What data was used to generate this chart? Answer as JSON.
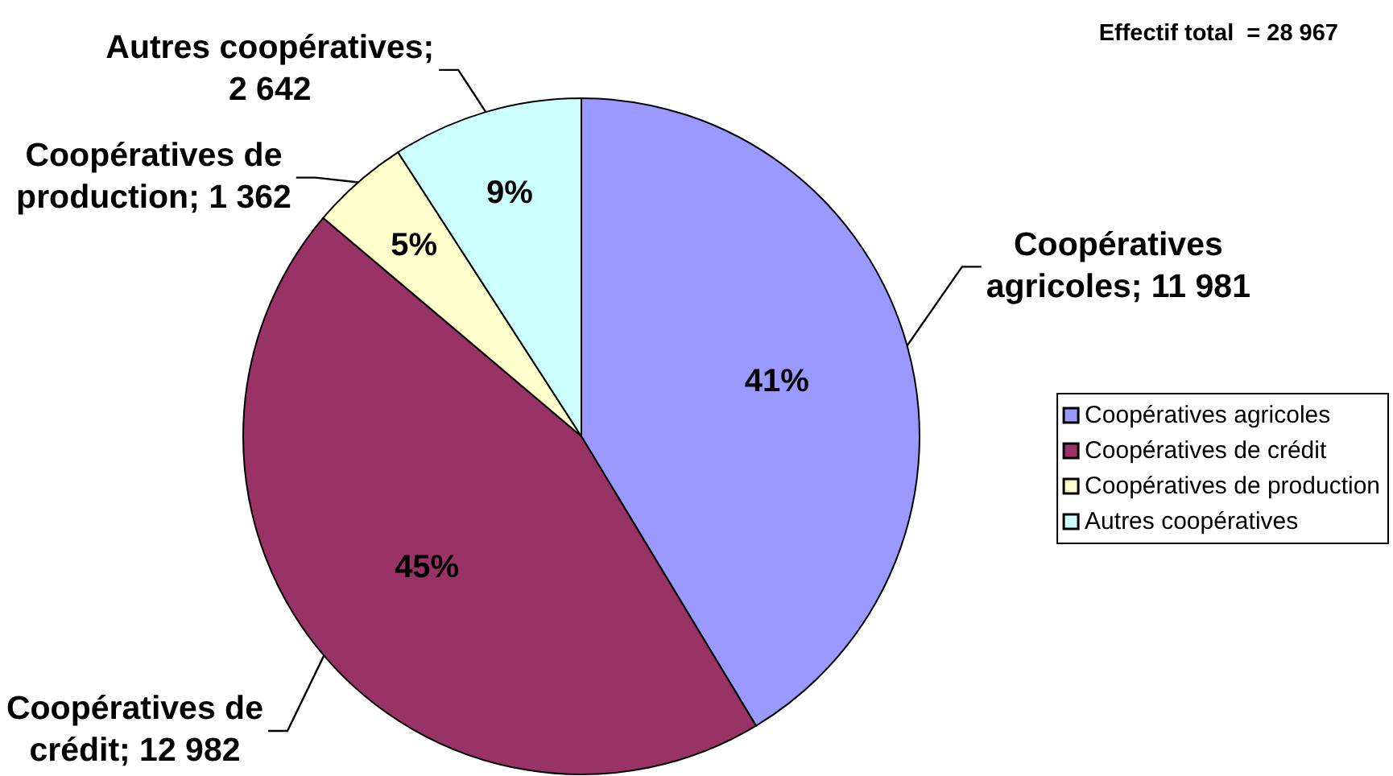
{
  "chart_data": {
    "type": "pie",
    "categories": [
      "Coopératives agricoles",
      "Coopératives de crédit",
      "Coopératives de production",
      "Autres coopératives"
    ],
    "values": [
      11981,
      12982,
      1362,
      2642
    ],
    "colors": [
      "#9999ff",
      "#993366",
      "#ffffcc",
      "#ccffff"
    ],
    "value_labels": [
      "Coopératives agricoles; 11 981",
      "Coopératives de crédit; 12 982",
      "Coopératives de production; 1 362",
      "Autres coopératives; 2 642"
    ],
    "legend": "right",
    "annotations": [
      "Effectif total  = 28 967",
      {
        "text": "41%",
        "x": "Coopératives agricoles"
      },
      {
        "text": "45%",
        "x": "Coopératives de crédit"
      },
      {
        "text": "5%",
        "x": "Coopératives de production"
      },
      {
        "text": "9%",
        "x": "Autres coopératives"
      }
    ]
  }
}
